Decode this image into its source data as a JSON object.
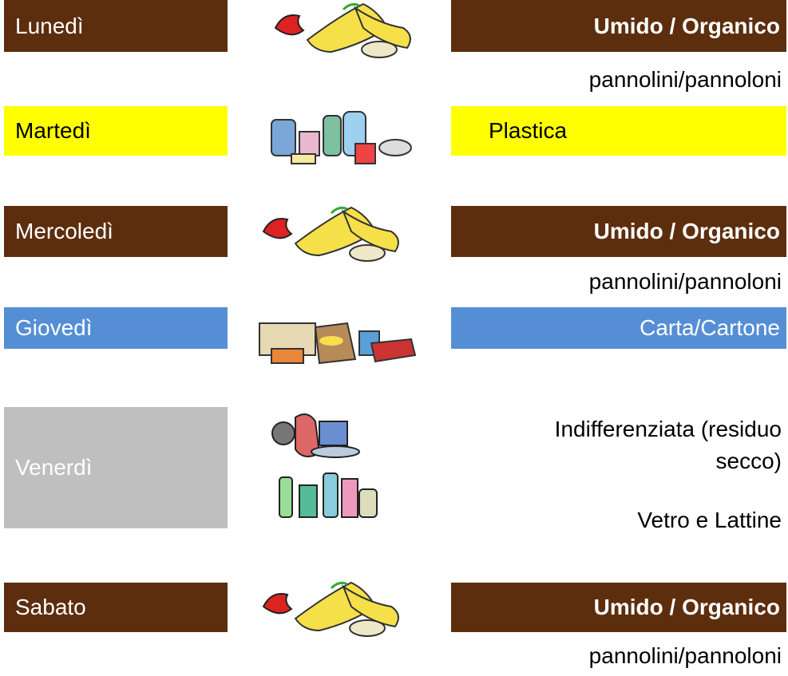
{
  "schedule": [
    {
      "day": "Lunedì",
      "waste": "Umido / Organico",
      "notes": [
        "pannolini/pannoloni"
      ]
    },
    {
      "day": "Martedì",
      "waste": "Plastica",
      "notes": []
    },
    {
      "day": "Mercoledì",
      "waste": "Umido / Organico",
      "notes": [
        "pannolini/pannoloni"
      ]
    },
    {
      "day": "Giovedì",
      "waste": "Carta/Cartone",
      "notes": []
    },
    {
      "day": "Venerdì",
      "waste": "Indifferenziata (residuo secco)",
      "notes": [
        "Vetro e Lattine"
      ]
    },
    {
      "day": "Sabato",
      "waste": "Umido / Organico",
      "notes": [
        "pannolini/pannoloni"
      ]
    }
  ]
}
